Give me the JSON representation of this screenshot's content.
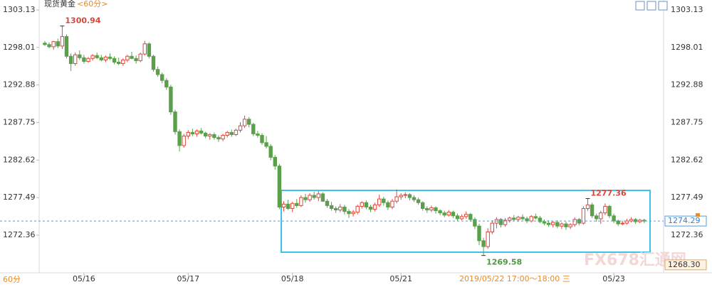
{
  "chart_data": {
    "type": "candlestick",
    "title": "现货黄金",
    "subtitle": "<60分>",
    "period": "60分",
    "watermark": "FX678汇通网",
    "cursor_time": "2019/05/22 17:00～18:00 三",
    "up_color": "#e0463c",
    "down_color": "#5aa04b",
    "ylim": [
      1267.12,
      1304.49
    ],
    "yticks": [
      1272.36,
      1277.49,
      1282.62,
      1287.75,
      1292.88,
      1298.01,
      1303.13
    ],
    "last_price": 1274.29,
    "cursor_value": {
      "value": 1268.3,
      "label": "1268.30"
    },
    "annotations": [
      {
        "label": "1300.94",
        "value": 1300.94
      },
      {
        "label": "1269.58",
        "value": 1269.58
      },
      {
        "label": "1277.36",
        "value": 1277.36
      }
    ],
    "categories": [
      null,
      null,
      null,
      null,
      null,
      null,
      null,
      null,
      null,
      "05/16",
      null,
      null,
      null,
      null,
      null,
      null,
      null,
      null,
      null,
      null,
      null,
      null,
      null,
      null,
      null,
      null,
      null,
      null,
      null,
      null,
      null,
      null,
      null,
      "05/17",
      null,
      null,
      null,
      null,
      null,
      null,
      null,
      null,
      null,
      null,
      null,
      null,
      null,
      null,
      null,
      null,
      null,
      null,
      null,
      null,
      null,
      null,
      null,
      "05/18",
      null,
      null,
      null,
      null,
      null,
      null,
      null,
      null,
      null,
      null,
      null,
      null,
      null,
      null,
      null,
      null,
      null,
      null,
      null,
      null,
      null,
      null,
      null,
      null,
      "05/21",
      null,
      null,
      null,
      null,
      null,
      null,
      null,
      null,
      null,
      null,
      null,
      null,
      null,
      null,
      null,
      null,
      null,
      null,
      null,
      null,
      null,
      null,
      null,
      null,
      null,
      null,
      null,
      null,
      null,
      null,
      null,
      null,
      null,
      null,
      null,
      null,
      null,
      null,
      null,
      null,
      null,
      null,
      null,
      null,
      null,
      null,
      null,
      null,
      "05/23",
      null,
      null,
      null,
      null,
      null,
      null,
      null
    ],
    "values": [
      [
        1298.6,
        1298.9,
        1298.2,
        1298.4
      ],
      [
        1298.4,
        1298.7,
        1297.9,
        1298.1
      ],
      [
        1298.1,
        1298.9,
        1297.7,
        1298.8
      ],
      [
        1298.8,
        1299.2,
        1297.9,
        1298.2
      ],
      [
        1298.2,
        1300.94,
        1297.8,
        1299.5
      ],
      [
        1299.5,
        1299.8,
        1296.5,
        1296.8
      ],
      [
        1296.8,
        1297.2,
        1294.8,
        1295.8
      ],
      [
        1295.8,
        1297.3,
        1295.5,
        1297.0
      ],
      [
        1297.0,
        1297.6,
        1296.3,
        1296.6
      ],
      [
        1296.6,
        1297.0,
        1295.8,
        1296.1
      ],
      [
        1296.1,
        1296.7,
        1295.9,
        1296.5
      ],
      [
        1296.5,
        1297.1,
        1296.2,
        1296.9
      ],
      [
        1296.9,
        1297.3,
        1296.4,
        1296.6
      ],
      [
        1296.6,
        1297.0,
        1296.1,
        1296.3
      ],
      [
        1296.3,
        1296.9,
        1296.0,
        1296.7
      ],
      [
        1296.7,
        1297.2,
        1296.3,
        1296.5
      ],
      [
        1296.5,
        1296.8,
        1295.7,
        1296.0
      ],
      [
        1296.0,
        1296.6,
        1295.6,
        1295.8
      ],
      [
        1295.8,
        1296.5,
        1295.5,
        1296.3
      ],
      [
        1296.3,
        1297.0,
        1296.0,
        1296.8
      ],
      [
        1296.8,
        1297.4,
        1296.4,
        1296.5
      ],
      [
        1296.5,
        1296.9,
        1295.8,
        1296.2
      ],
      [
        1296.2,
        1297.3,
        1296.0,
        1297.1
      ],
      [
        1297.1,
        1298.9,
        1296.9,
        1298.5
      ],
      [
        1298.5,
        1298.7,
        1296.5,
        1296.8
      ],
      [
        1296.8,
        1297.0,
        1294.7,
        1295.0
      ],
      [
        1295.0,
        1295.4,
        1294.0,
        1294.3
      ],
      [
        1294.3,
        1294.6,
        1293.1,
        1293.5
      ],
      [
        1293.5,
        1293.8,
        1292.2,
        1292.6
      ],
      [
        1292.6,
        1292.9,
        1288.8,
        1289.2
      ],
      [
        1289.2,
        1289.5,
        1286.1,
        1286.5
      ],
      [
        1286.5,
        1286.8,
        1283.8,
        1284.6
      ],
      [
        1284.6,
        1286.2,
        1284.3,
        1285.9
      ],
      [
        1285.9,
        1286.7,
        1285.5,
        1286.4
      ],
      [
        1286.4,
        1286.9,
        1285.9,
        1286.2
      ],
      [
        1286.2,
        1286.8,
        1285.8,
        1286.6
      ],
      [
        1286.6,
        1287.0,
        1286.1,
        1286.3
      ],
      [
        1286.3,
        1286.5,
        1285.6,
        1285.9
      ],
      [
        1285.9,
        1286.3,
        1285.4,
        1286.1
      ],
      [
        1286.1,
        1286.4,
        1285.4,
        1285.7
      ],
      [
        1285.7,
        1286.0,
        1285.1,
        1285.5
      ],
      [
        1285.5,
        1286.2,
        1285.2,
        1286.0
      ],
      [
        1286.0,
        1286.6,
        1285.7,
        1286.4
      ],
      [
        1286.4,
        1286.8,
        1285.8,
        1286.1
      ],
      [
        1286.1,
        1286.9,
        1285.9,
        1286.7
      ],
      [
        1286.7,
        1287.8,
        1286.4,
        1287.3
      ],
      [
        1287.3,
        1288.7,
        1287.0,
        1288.2
      ],
      [
        1288.2,
        1288.5,
        1287.1,
        1287.5
      ],
      [
        1287.5,
        1287.7,
        1285.9,
        1286.2
      ],
      [
        1286.2,
        1286.6,
        1285.7,
        1286.0
      ],
      [
        1286.0,
        1286.3,
        1284.7,
        1285.0
      ],
      [
        1285.0,
        1285.9,
        1284.2,
        1284.5
      ],
      [
        1284.5,
        1284.8,
        1282.6,
        1283.0
      ],
      [
        1283.0,
        1283.3,
        1281.3,
        1281.8
      ],
      [
        1281.8,
        1282.1,
        1275.9,
        1276.2
      ],
      [
        1276.2,
        1277.0,
        1275.6,
        1276.6
      ],
      [
        1276.6,
        1277.2,
        1275.8,
        1276.0
      ],
      [
        1276.0,
        1276.9,
        1275.5,
        1276.7
      ],
      [
        1276.7,
        1277.3,
        1276.1,
        1276.4
      ],
      [
        1276.4,
        1277.8,
        1276.2,
        1277.5
      ],
      [
        1277.5,
        1278.0,
        1276.8,
        1277.2
      ],
      [
        1277.2,
        1278.1,
        1276.9,
        1277.8
      ],
      [
        1277.8,
        1278.3,
        1277.2,
        1277.5
      ],
      [
        1277.5,
        1278.4,
        1277.0,
        1278.0
      ],
      [
        1278.0,
        1278.2,
        1276.9,
        1277.0
      ],
      [
        1277.0,
        1277.3,
        1276.1,
        1276.4
      ],
      [
        1276.4,
        1276.9,
        1275.7,
        1276.0
      ],
      [
        1276.0,
        1276.3,
        1275.4,
        1275.8
      ],
      [
        1275.8,
        1276.6,
        1275.5,
        1276.2
      ],
      [
        1276.2,
        1276.5,
        1275.2,
        1275.6
      ],
      [
        1275.6,
        1275.9,
        1274.7,
        1275.3
      ],
      [
        1275.3,
        1275.8,
        1274.9,
        1275.5
      ],
      [
        1275.5,
        1276.5,
        1275.2,
        1276.3
      ],
      [
        1276.3,
        1277.0,
        1276.0,
        1276.8
      ],
      [
        1276.8,
        1277.1,
        1275.9,
        1276.2
      ],
      [
        1276.2,
        1276.5,
        1275.5,
        1275.9
      ],
      [
        1275.9,
        1276.8,
        1275.6,
        1276.5
      ],
      [
        1276.5,
        1277.9,
        1276.2,
        1277.3
      ],
      [
        1277.3,
        1277.6,
        1276.4,
        1276.8
      ],
      [
        1276.8,
        1277.1,
        1275.8,
        1276.2
      ],
      [
        1276.2,
        1277.3,
        1275.9,
        1277.0
      ],
      [
        1277.0,
        1278.6,
        1276.7,
        1277.6
      ],
      [
        1277.6,
        1278.1,
        1277.2,
        1277.8
      ],
      [
        1277.8,
        1278.2,
        1277.4,
        1277.9
      ],
      [
        1277.9,
        1278.1,
        1277.1,
        1277.5
      ],
      [
        1277.5,
        1277.8,
        1276.9,
        1277.2
      ],
      [
        1277.2,
        1277.5,
        1276.5,
        1276.8
      ],
      [
        1276.8,
        1277.0,
        1275.7,
        1276.0
      ],
      [
        1276.0,
        1276.3,
        1275.4,
        1275.8
      ],
      [
        1275.8,
        1276.4,
        1275.5,
        1276.1
      ],
      [
        1276.1,
        1276.3,
        1275.3,
        1275.7
      ],
      [
        1275.7,
        1275.9,
        1275.1,
        1275.4
      ],
      [
        1275.4,
        1275.7,
        1274.8,
        1275.1
      ],
      [
        1275.1,
        1275.8,
        1274.9,
        1275.5
      ],
      [
        1275.5,
        1275.7,
        1274.7,
        1275.0
      ],
      [
        1275.0,
        1275.3,
        1274.3,
        1274.6
      ],
      [
        1274.6,
        1275.2,
        1274.4,
        1274.9
      ],
      [
        1274.9,
        1275.6,
        1274.6,
        1275.2
      ],
      [
        1275.2,
        1275.4,
        1274.2,
        1274.5
      ],
      [
        1274.5,
        1274.8,
        1273.2,
        1273.6
      ],
      [
        1273.6,
        1273.9,
        1271.0,
        1271.6
      ],
      [
        1271.6,
        1272.0,
        1269.58,
        1270.8
      ],
      [
        1270.8,
        1273.3,
        1270.5,
        1272.8
      ],
      [
        1272.8,
        1274.4,
        1272.5,
        1274.0
      ],
      [
        1274.0,
        1274.8,
        1273.3,
        1274.5
      ],
      [
        1274.5,
        1274.7,
        1273.4,
        1273.8
      ],
      [
        1273.8,
        1274.7,
        1273.5,
        1274.4
      ],
      [
        1274.4,
        1274.9,
        1274.1,
        1274.7
      ],
      [
        1274.7,
        1275.1,
        1274.3,
        1274.5
      ],
      [
        1274.5,
        1275.0,
        1274.2,
        1274.8
      ],
      [
        1274.8,
        1275.2,
        1274.4,
        1274.6
      ],
      [
        1274.6,
        1274.9,
        1274.0,
        1274.3
      ],
      [
        1274.3,
        1275.1,
        1274.1,
        1274.9
      ],
      [
        1274.9,
        1275.3,
        1274.5,
        1274.7
      ],
      [
        1274.7,
        1275.0,
        1274.0,
        1274.2
      ],
      [
        1274.2,
        1274.5,
        1273.7,
        1274.0
      ],
      [
        1274.0,
        1274.4,
        1273.5,
        1273.8
      ],
      [
        1273.8,
        1274.3,
        1273.4,
        1274.1
      ],
      [
        1274.1,
        1274.4,
        1273.3,
        1273.6
      ],
      [
        1273.6,
        1274.1,
        1273.2,
        1273.9
      ],
      [
        1273.9,
        1274.2,
        1273.1,
        1273.5
      ],
      [
        1273.5,
        1274.0,
        1273.2,
        1273.8
      ],
      [
        1273.8,
        1274.8,
        1273.5,
        1274.5
      ],
      [
        1274.5,
        1274.7,
        1273.7,
        1274.0
      ],
      [
        1274.0,
        1276.3,
        1273.8,
        1276.0
      ],
      [
        1276.0,
        1277.36,
        1275.7,
        1276.5
      ],
      [
        1276.5,
        1276.8,
        1274.7,
        1275.0
      ],
      [
        1275.0,
        1275.3,
        1274.2,
        1274.6
      ],
      [
        1274.6,
        1275.7,
        1273.9,
        1275.4
      ],
      [
        1275.4,
        1276.7,
        1275.1,
        1276.3
      ],
      [
        1276.3,
        1276.5,
        1274.7,
        1275.0
      ],
      [
        1275.0,
        1275.3,
        1274.0,
        1274.3
      ],
      [
        1274.3,
        1274.5,
        1273.6,
        1273.9
      ],
      [
        1273.9,
        1274.3,
        1273.7,
        1274.0
      ],
      [
        1274.0,
        1274.6,
        1273.8,
        1274.3
      ],
      [
        1274.3,
        1274.8,
        1274.1,
        1274.5
      ],
      [
        1274.5,
        1274.7,
        1273.9,
        1274.2
      ],
      [
        1274.2,
        1274.6,
        1274.0,
        1274.4
      ],
      [
        1274.4,
        1274.6,
        1274.0,
        1274.29
      ]
    ]
  }
}
